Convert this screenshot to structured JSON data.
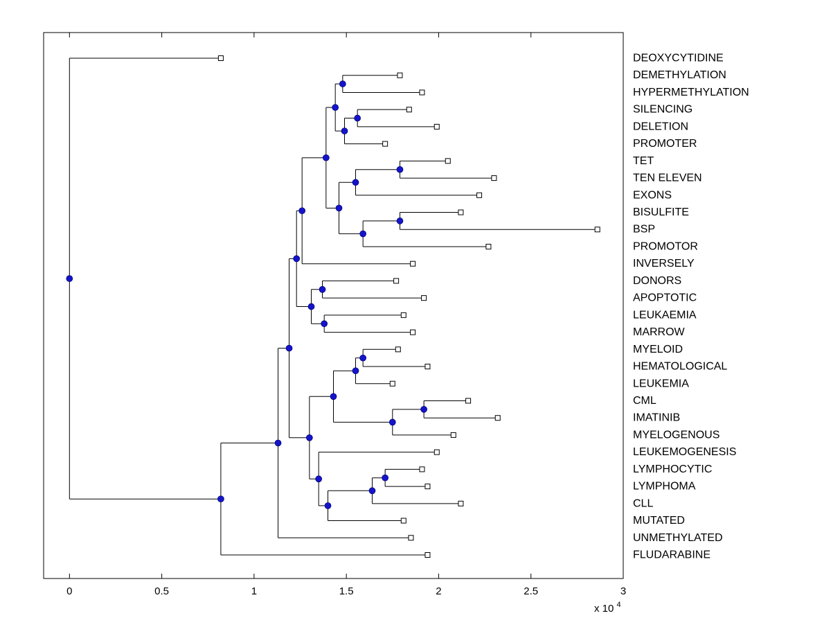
{
  "figure": {
    "background": "#ffffff",
    "title": ""
  },
  "colors": {
    "branch_node": "#1414cc",
    "branch_node_edge": "#000066",
    "line": "#000000",
    "leaf_marker_fill": "#ffffff",
    "leaf_marker_edge": "#000000",
    "text": "#000000",
    "axis": "#000000"
  },
  "chart_data": {
    "type": "dendrogram",
    "orientation": "horizontal",
    "title": "",
    "xlabel": "",
    "ylabel": "",
    "grid": false,
    "legend": false,
    "xlim": [
      -1400,
      30000
    ],
    "x_multiplier": {
      "base": "x 10",
      "exponent": "4"
    },
    "x_ticks": [
      {
        "value": 0,
        "label": "0"
      },
      {
        "value": 5000,
        "label": "0.5"
      },
      {
        "value": 10000,
        "label": "1"
      },
      {
        "value": 15000,
        "label": "1.5"
      },
      {
        "value": 20000,
        "label": "2"
      },
      {
        "value": 25000,
        "label": "2.5"
      },
      {
        "value": 30000,
        "label": "3"
      }
    ],
    "leaf_order": [
      "DEOXYCYTIDINE",
      "DEMETHYLATION",
      "HYPERMETHYLATION",
      "SILENCING",
      "DELETION",
      "PROMOTER",
      "TET",
      "TEN ELEVEN",
      "EXONS",
      "BISULFITE",
      "BSP",
      "PROMOTOR",
      "INVERSELY",
      "DONORS",
      "APOPTOTIC",
      "LEUKAEMIA",
      "MARROW",
      "MYELOID",
      "HEMATOLOGICAL",
      "LEUKEMIA",
      "CML",
      "IMATINIB",
      "MYELOGENOUS",
      "LEUKEMOGENESIS",
      "LYMPHOCYTIC",
      "LYMPHOMA",
      "CLL",
      "MUTATED",
      "UNMETHYLATED",
      "FLUDARABINE"
    ],
    "tree": {
      "dist": 0,
      "children": [
        {
          "name": "DEOXYCYTIDINE",
          "dist": 8200
        },
        {
          "dist": 8200,
          "children": [
            {
              "dist": 11300,
              "children": [
                {
                  "dist": 11900,
                  "children": [
                    {
                      "dist": 12300,
                      "children": [
                        {
                          "dist": 12600,
                          "children": [
                            {
                              "dist": 13900,
                              "children": [
                                {
                                  "dist": 14400,
                                  "children": [
                                    {
                                      "dist": 14800,
                                      "children": [
                                        {
                                          "name": "DEMETHYLATION",
                                          "dist": 17900
                                        },
                                        {
                                          "name": "HYPERMETHYLATION",
                                          "dist": 19100
                                        }
                                      ]
                                    },
                                    {
                                      "dist": 14900,
                                      "children": [
                                        {
                                          "dist": 15600,
                                          "children": [
                                            {
                                              "name": "SILENCING",
                                              "dist": 18400
                                            },
                                            {
                                              "name": "DELETION",
                                              "dist": 19900
                                            }
                                          ]
                                        },
                                        {
                                          "name": "PROMOTER",
                                          "dist": 17100
                                        }
                                      ]
                                    }
                                  ]
                                },
                                {
                                  "dist": 14600,
                                  "children": [
                                    {
                                      "dist": 15500,
                                      "children": [
                                        {
                                          "dist": 17900,
                                          "children": [
                                            {
                                              "name": "TET",
                                              "dist": 20500
                                            },
                                            {
                                              "name": "TEN ELEVEN",
                                              "dist": 23000
                                            }
                                          ]
                                        },
                                        {
                                          "name": "EXONS",
                                          "dist": 22200
                                        }
                                      ]
                                    },
                                    {
                                      "dist": 15900,
                                      "children": [
                                        {
                                          "dist": 17900,
                                          "children": [
                                            {
                                              "name": "BISULFITE",
                                              "dist": 21200
                                            },
                                            {
                                              "name": "BSP",
                                              "dist": 28600
                                            }
                                          ]
                                        },
                                        {
                                          "name": "PROMOTOR",
                                          "dist": 22700
                                        }
                                      ]
                                    }
                                  ]
                                }
                              ]
                            },
                            {
                              "name": "INVERSELY",
                              "dist": 18600
                            }
                          ]
                        },
                        {
                          "dist": 13100,
                          "children": [
                            {
                              "dist": 13700,
                              "children": [
                                {
                                  "name": "DONORS",
                                  "dist": 17700
                                },
                                {
                                  "name": "APOPTOTIC",
                                  "dist": 19200
                                }
                              ]
                            },
                            {
                              "dist": 13800,
                              "children": [
                                {
                                  "name": "LEUKAEMIA",
                                  "dist": 18100
                                },
                                {
                                  "name": "MARROW",
                                  "dist": 18600
                                }
                              ]
                            }
                          ]
                        }
                      ]
                    },
                    {
                      "dist": 13000,
                      "children": [
                        {
                          "dist": 14300,
                          "children": [
                            {
                              "dist": 15500,
                              "children": [
                                {
                                  "dist": 15900,
                                  "children": [
                                    {
                                      "name": "MYELOID",
                                      "dist": 17800
                                    },
                                    {
                                      "name": "HEMATOLOGICAL",
                                      "dist": 19400
                                    }
                                  ]
                                },
                                {
                                  "name": "LEUKEMIA",
                                  "dist": 17500
                                }
                              ]
                            },
                            {
                              "dist": 17500,
                              "children": [
                                {
                                  "dist": 19200,
                                  "children": [
                                    {
                                      "name": "CML",
                                      "dist": 21600
                                    },
                                    {
                                      "name": "IMATINIB",
                                      "dist": 23200
                                    }
                                  ]
                                },
                                {
                                  "name": "MYELOGENOUS",
                                  "dist": 20800
                                }
                              ]
                            }
                          ]
                        },
                        {
                          "dist": 13500,
                          "children": [
                            {
                              "name": "LEUKEMOGENESIS",
                              "dist": 19900
                            },
                            {
                              "dist": 14000,
                              "children": [
                                {
                                  "dist": 16400,
                                  "children": [
                                    {
                                      "dist": 17100,
                                      "children": [
                                        {
                                          "name": "LYMPHOCYTIC",
                                          "dist": 19100
                                        },
                                        {
                                          "name": "LYMPHOMA",
                                          "dist": 19400
                                        }
                                      ]
                                    },
                                    {
                                      "name": "CLL",
                                      "dist": 21200
                                    }
                                  ]
                                },
                                {
                                  "name": "MUTATED",
                                  "dist": 18100
                                }
                              ]
                            }
                          ]
                        }
                      ]
                    }
                  ]
                },
                {
                  "name": "UNMETHYLATED",
                  "dist": 18500
                }
              ]
            },
            {
              "name": "FLUDARABINE",
              "dist": 19400
            }
          ]
        }
      ]
    }
  }
}
